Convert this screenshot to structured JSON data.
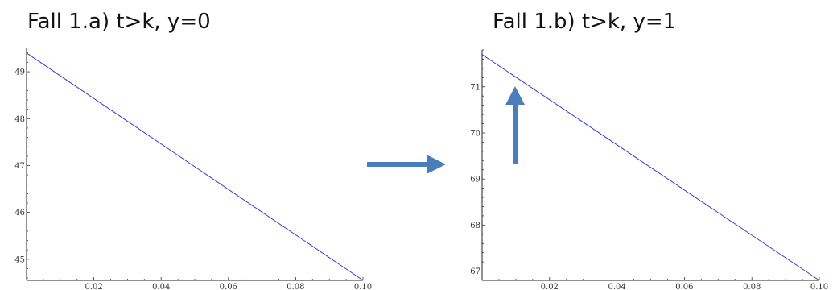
{
  "chart_data": [
    {
      "type": "line",
      "title": "Fall 1.a)  t>k, y=0",
      "xlabel": "",
      "ylabel": "",
      "xlim": [
        0,
        0.1
      ],
      "ylim": [
        44.55,
        49.5
      ],
      "x_ticks": [
        0.02,
        0.04,
        0.06,
        0.08,
        0.1
      ],
      "x_tick_labels": [
        "0.02",
        "0.04",
        "0.06",
        "0.08",
        "0.10"
      ],
      "y_ticks": [
        45,
        46,
        47,
        48,
        49
      ],
      "y_tick_labels": [
        "45",
        "46",
        "47",
        "48",
        "49"
      ],
      "series": [
        {
          "x": [
            0,
            0.1
          ],
          "y": [
            49.4,
            44.55
          ]
        }
      ],
      "grid": false,
      "line_color": "#3a3acc"
    },
    {
      "type": "line",
      "title": "Fall 1.b) t>k, y=1",
      "xlabel": "",
      "ylabel": "",
      "xlim": [
        0,
        0.1
      ],
      "ylim": [
        66.8,
        71.8
      ],
      "x_ticks": [
        0.02,
        0.04,
        0.06,
        0.08,
        0.1
      ],
      "x_tick_labels": [
        "0.02",
        "0.04",
        "0.06",
        "0.08",
        "0.10"
      ],
      "y_ticks": [
        67,
        68,
        69,
        70,
        71
      ],
      "y_tick_labels": [
        "67",
        "68",
        "69",
        "70",
        "71"
      ],
      "series": [
        {
          "x": [
            0,
            0.1
          ],
          "y": [
            71.7,
            66.8
          ]
        }
      ],
      "grid": false,
      "line_color": "#3a3acc"
    }
  ],
  "annotations": {
    "arrow_color": "#4a7ebb"
  }
}
